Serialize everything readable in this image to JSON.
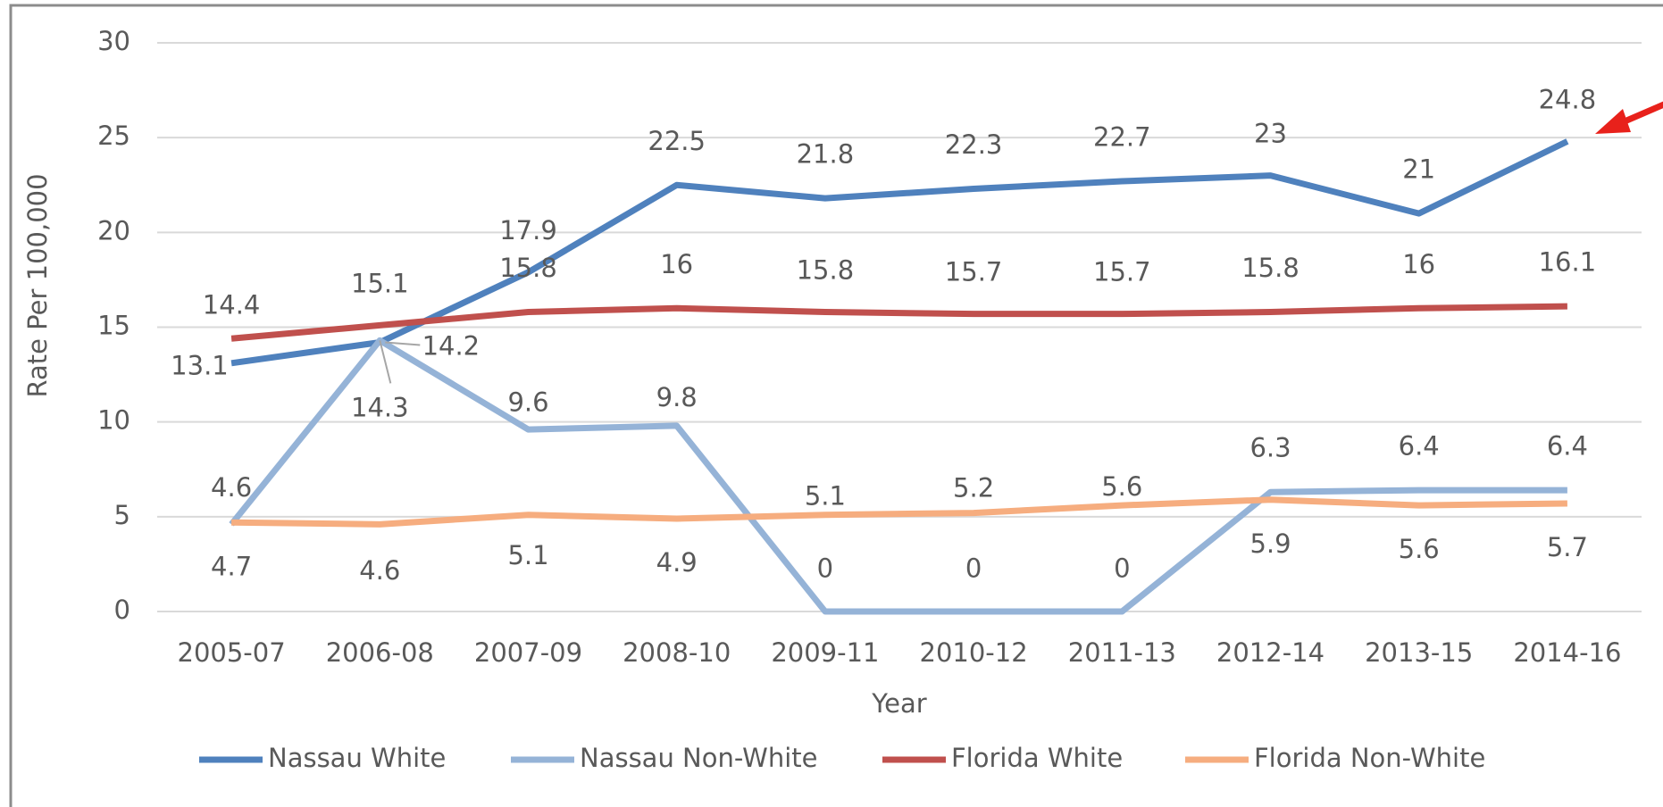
{
  "chart_data": {
    "type": "line",
    "xlabel": "Year",
    "ylabel": "Rate Per 100,000",
    "categories": [
      "2005-07",
      "2006-08",
      "2007-09",
      "2008-10",
      "2009-11",
      "2010-12",
      "2011-13",
      "2012-14",
      "2013-15",
      "2014-16"
    ],
    "series": [
      {
        "name": "Nassau White",
        "color": "#4f81bd",
        "values": [
          13.1,
          14.2,
          17.9,
          22.5,
          21.8,
          22.3,
          22.7,
          23,
          21,
          24.8
        ]
      },
      {
        "name": "Nassau Non-White",
        "color": "#95b3d7",
        "values": [
          4.6,
          14.3,
          9.6,
          9.8,
          0,
          0,
          0,
          6.3,
          6.4,
          6.4
        ]
      },
      {
        "name": "Florida White",
        "color": "#c0504d",
        "values": [
          14.4,
          15.1,
          15.8,
          16,
          15.8,
          15.7,
          15.7,
          15.8,
          16,
          16.1
        ]
      },
      {
        "name": "Florida Non-White",
        "color": "#f6ad7f",
        "values": [
          4.7,
          4.6,
          5.1,
          4.9,
          5.1,
          5.2,
          5.6,
          5.9,
          5.6,
          5.7
        ]
      }
    ],
    "ylim": [
      0,
      30
    ],
    "yticks": [
      0,
      5,
      10,
      15,
      20,
      25,
      30
    ],
    "grid": true,
    "legend": "bottom"
  }
}
